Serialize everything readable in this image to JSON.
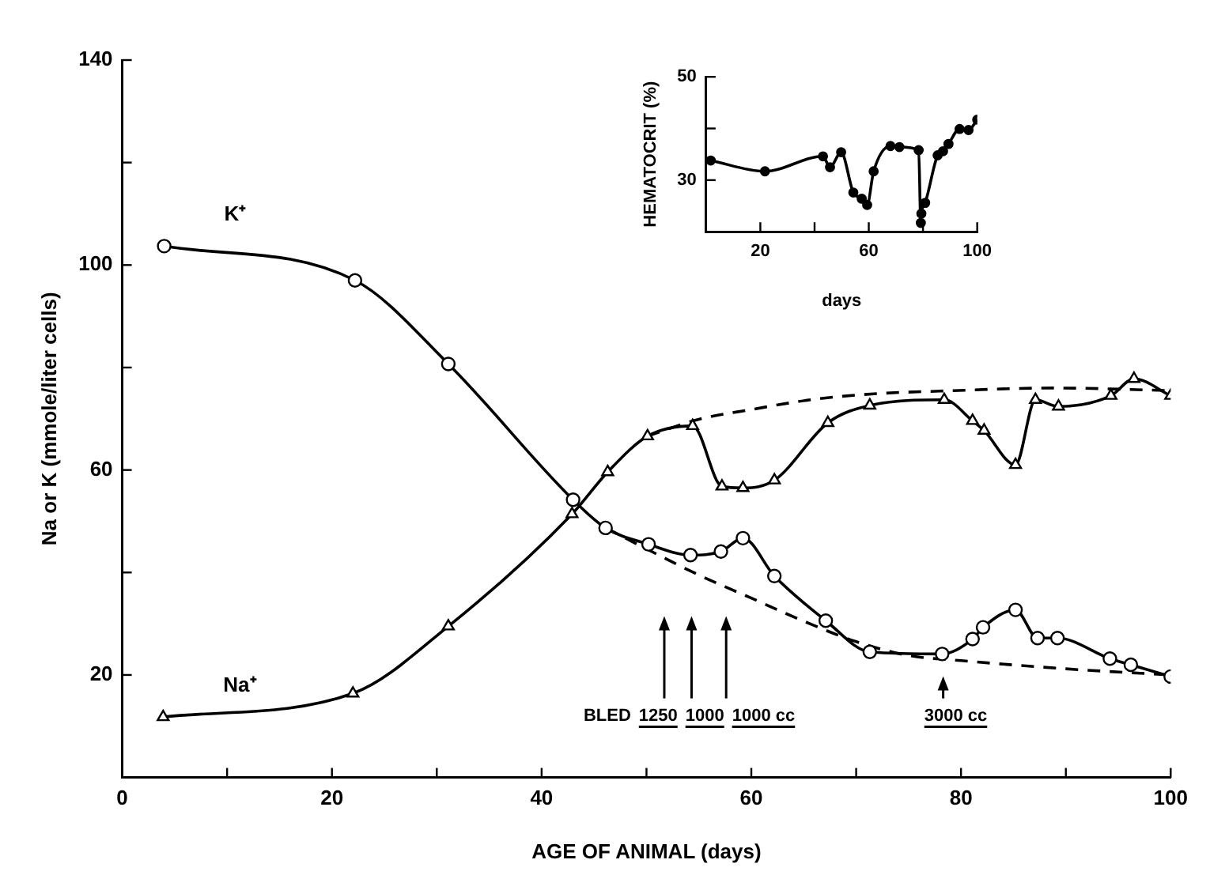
{
  "chart_data": [
    {
      "type": "line",
      "xlabel": "AGE OF ANIMAL (days)",
      "ylabel": "Na or K (mmole/liter cells)",
      "xlim": [
        0,
        100
      ],
      "ylim": [
        0,
        140
      ],
      "xticks": [
        0,
        {
          "value": 10,
          "label": null
        },
        20,
        {
          "value": 30,
          "label": null
        },
        40,
        {
          "value": 50,
          "label": null
        },
        60,
        {
          "value": 70,
          "label": null
        },
        80,
        {
          "value": 90,
          "label": null
        },
        100
      ],
      "yticks": [
        20,
        {
          "value": 40,
          "label": null
        },
        60,
        {
          "value": 80,
          "label": null
        },
        100,
        {
          "value": 120,
          "label": null
        },
        140
      ],
      "series": [
        {
          "name": "K⁺",
          "color": "#000000",
          "marker": "circle",
          "line_style": "solid",
          "x": [
            4.0,
            22.2,
            31.1,
            43.0,
            46.1,
            50.2,
            54.2,
            57.1,
            59.2,
            62.2,
            67.1,
            71.3,
            78.2,
            81.1,
            82.1,
            85.2,
            87.3,
            89.2,
            94.2,
            96.2,
            100
          ],
          "values": [
            103.7,
            97,
            80.7,
            54.2,
            48.7,
            45.5,
            43.4,
            44.1,
            46.7,
            39.3,
            30.6,
            24.5,
            24.1,
            27,
            29.3,
            32.7,
            27.2,
            27.2,
            23.2,
            22,
            19.7
          ]
        },
        {
          "color": "#000000",
          "marker": "none",
          "line_style": "dashed",
          "x": [
            46.1,
            50,
            55,
            60,
            65,
            70,
            75,
            80,
            90,
            100
          ],
          "values": [
            48.7,
            44.6,
            39.5,
            35,
            30.5,
            26.5,
            23.8,
            22.8,
            21.2,
            20
          ]
        },
        {
          "name": "Na⁺",
          "color": "#000000",
          "marker": "triangle",
          "line_style": "solid",
          "x": [
            3.9,
            22.0,
            31.1,
            42.9,
            46.3,
            50.1,
            54.4,
            57.2,
            59.2,
            62.2,
            67.3,
            71.3,
            78.4,
            81.1,
            82.2,
            85.2,
            87.1,
            89.3,
            94.3,
            96.5,
            100
          ],
          "values": [
            11.8,
            16.4,
            29.5,
            51.4,
            59.6,
            66.6,
            68.6,
            56.8,
            56.5,
            58,
            69.2,
            72.6,
            73.7,
            69.6,
            67.7,
            61,
            73.7,
            72.4,
            74.5,
            77.8,
            74.5
          ]
        },
        {
          "color": "#000000",
          "marker": "none",
          "line_style": "dashed",
          "x": [
            50.1,
            55,
            60,
            66,
            72,
            78,
            89,
            100
          ],
          "values": [
            66.6,
            69.9,
            71.8,
            73.8,
            74.9,
            75.4,
            76,
            75.5
          ]
        }
      ],
      "annotations": [
        "BLED",
        "1250",
        "1000",
        "1000 cc",
        "3000 cc"
      ]
    },
    {
      "type": "line",
      "xlabel": "days",
      "ylabel": "HEMATOCRIT (%)",
      "xlim": [
        0,
        100
      ],
      "ylim": [
        20,
        50
      ],
      "xticks": [
        20,
        {
          "value": 40,
          "label": null
        },
        60,
        {
          "value": 80,
          "label": null
        },
        100
      ],
      "yticks": [
        {
          "value": 20,
          "label": null
        },
        30,
        {
          "value": 40,
          "label": null
        },
        50
      ],
      "series": [
        {
          "color": "#000000",
          "marker": "circle",
          "line_style": "solid",
          "x": [
            1.7,
            21.7,
            43.1,
            45.7,
            49.8,
            54.3,
            57.4,
            59.4,
            61.8,
            68,
            71.3,
            78.4,
            79.2,
            79.4,
            80.8,
            85.4,
            87.4,
            89.4,
            93.5,
            96.8,
            100
          ],
          "values": [
            33.8,
            31.7,
            34.6,
            32.5,
            35.4,
            27.6,
            26.4,
            25.2,
            31.7,
            36.6,
            36.4,
            35.8,
            21.7,
            23.5,
            25.6,
            34.8,
            35.6,
            37,
            39.9,
            39.7,
            41.7
          ]
        }
      ]
    }
  ]
}
